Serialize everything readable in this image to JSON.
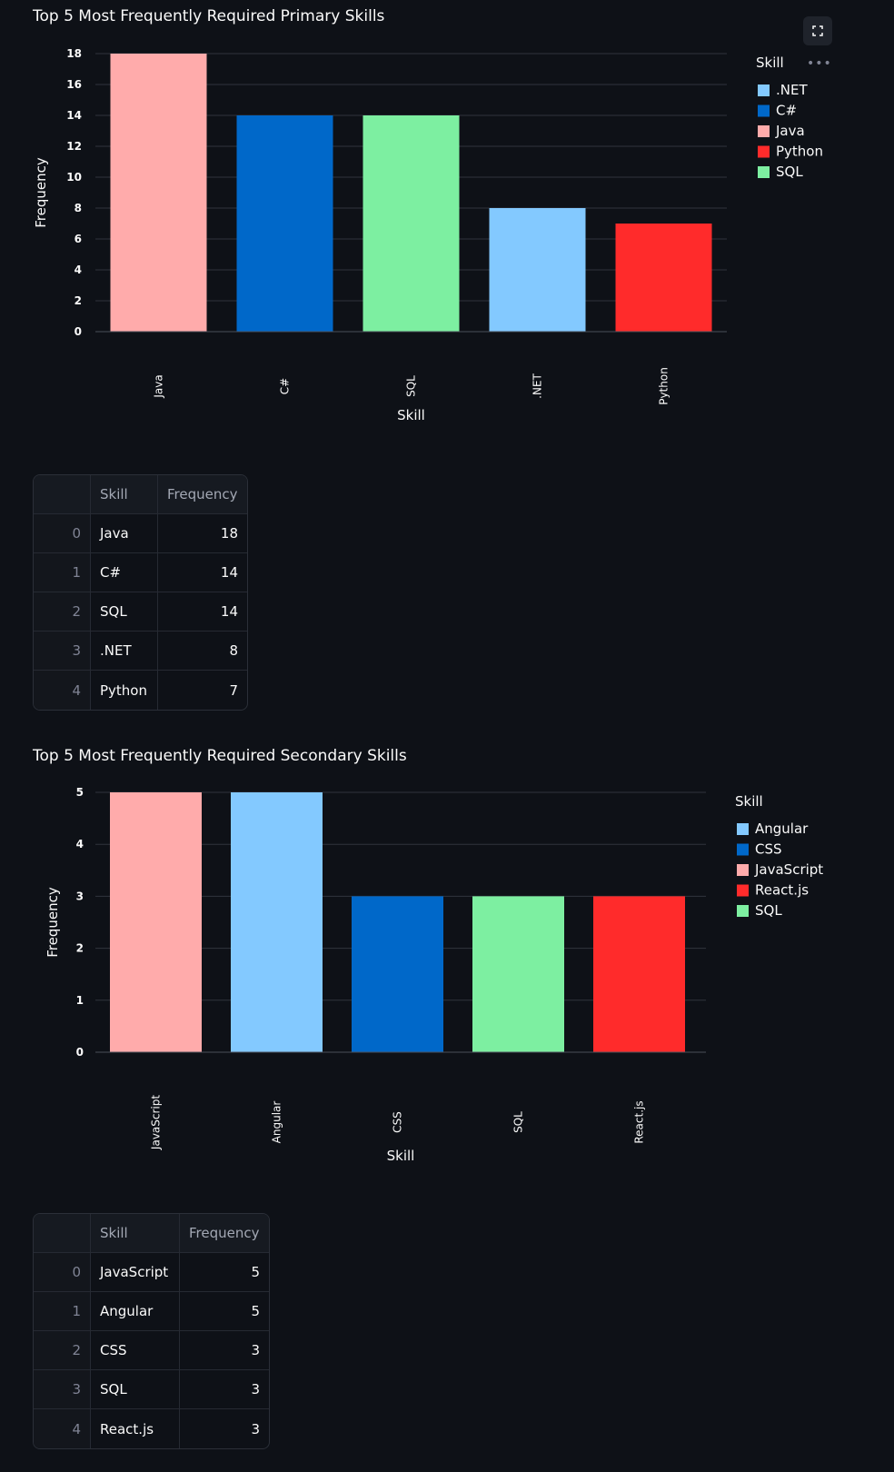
{
  "charts": [
    {
      "title": "Top 5 Most Frequently Required Primary Skills",
      "chart_data": {
        "type": "bar",
        "categories": [
          "Java",
          "C#",
          "SQL",
          ".NET",
          "Python"
        ],
        "values": [
          18,
          14,
          14,
          8,
          7
        ],
        "colors": [
          "#ffabab",
          "#0068c9",
          "#7defa1",
          "#83c9ff",
          "#ff2b2b"
        ],
        "xlabel": "Skill",
        "ylabel": "Frequency",
        "ylim": [
          0,
          18
        ],
        "yticks": [
          0,
          2,
          4,
          6,
          8,
          10,
          12,
          14,
          16,
          18
        ],
        "grid": true,
        "legend_position": "top-right",
        "legend": {
          "title": "Skill",
          "items": [
            {
              "label": ".NET",
              "color": "#83c9ff"
            },
            {
              "label": "C#",
              "color": "#0068c9"
            },
            {
              "label": "Java",
              "color": "#ffabab"
            },
            {
              "label": "Python",
              "color": "#ff2b2b"
            },
            {
              "label": "SQL",
              "color": "#7defa1"
            }
          ]
        }
      },
      "table": {
        "columns": [
          "",
          "Skill",
          "Frequency"
        ],
        "rows": [
          [
            "0",
            "Java",
            "18"
          ],
          [
            "1",
            "C#",
            "14"
          ],
          [
            "2",
            "SQL",
            "14"
          ],
          [
            "3",
            ".NET",
            "8"
          ],
          [
            "4",
            "Python",
            "7"
          ]
        ]
      }
    },
    {
      "title": "Top 5 Most Frequently Required Secondary Skills",
      "chart_data": {
        "type": "bar",
        "categories": [
          "JavaScript",
          "Angular",
          "CSS",
          "SQL",
          "React.js"
        ],
        "values": [
          5,
          5,
          3,
          3,
          3
        ],
        "colors": [
          "#ffabab",
          "#83c9ff",
          "#0068c9",
          "#7defa1",
          "#ff2b2b"
        ],
        "xlabel": "Skill",
        "ylabel": "Frequency",
        "ylim": [
          0,
          5
        ],
        "yticks": [
          0,
          1,
          2,
          3,
          4,
          5
        ],
        "grid": true,
        "legend_position": "top-right",
        "legend": {
          "title": "Skill",
          "items": [
            {
              "label": "Angular",
              "color": "#83c9ff"
            },
            {
              "label": "CSS",
              "color": "#0068c9"
            },
            {
              "label": "JavaScript",
              "color": "#ffabab"
            },
            {
              "label": "React.js",
              "color": "#ff2b2b"
            },
            {
              "label": "SQL",
              "color": "#7defa1"
            }
          ]
        }
      },
      "table": {
        "columns": [
          "",
          "Skill",
          "Frequency"
        ],
        "rows": [
          [
            "0",
            "JavaScript",
            "5"
          ],
          [
            "1",
            "Angular",
            "5"
          ],
          [
            "2",
            "CSS",
            "3"
          ],
          [
            "3",
            "SQL",
            "3"
          ],
          [
            "4",
            "React.js",
            "3"
          ]
        ]
      }
    }
  ],
  "toolbar": {
    "fullscreen_icon": "fullscreen-icon",
    "menu_label": "•••"
  }
}
